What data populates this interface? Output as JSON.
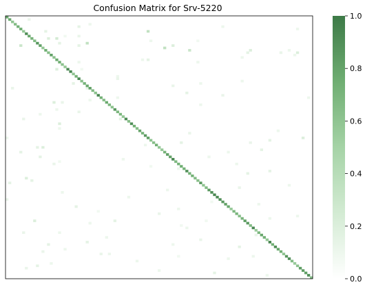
{
  "chart_data": {
    "type": "heatmap",
    "title": "Confusion Matrix for Srv-5220",
    "xlabel": "",
    "ylabel": "",
    "size": 111,
    "value_range": [
      0.0,
      1.0
    ],
    "colormap": [
      "#ffffff",
      "#3d7a47"
    ],
    "diagonal_value_range": [
      0.55,
      0.95
    ],
    "off_diagonal_max": 0.5,
    "off_diagonal_cells": [
      [
        1,
        8,
        0.12
      ],
      [
        3,
        30,
        0.1
      ],
      [
        4,
        26,
        0.15
      ],
      [
        4,
        78,
        0.1
      ],
      [
        5,
        105,
        0.1
      ],
      [
        6,
        14,
        0.15
      ],
      [
        6,
        51,
        0.35
      ],
      [
        8,
        26,
        0.12
      ],
      [
        8,
        21,
        0.08
      ],
      [
        9,
        15,
        0.2
      ],
      [
        9,
        18,
        0.25
      ],
      [
        10,
        69,
        0.08
      ],
      [
        10,
        52,
        0.1
      ],
      [
        11,
        29,
        0.35
      ],
      [
        11,
        19,
        0.15
      ],
      [
        12,
        26,
        0.15
      ],
      [
        12,
        5,
        0.3
      ],
      [
        12,
        60,
        0.2
      ],
      [
        13,
        57,
        0.35
      ],
      [
        14,
        66,
        0.3
      ],
      [
        14,
        88,
        0.2
      ],
      [
        14,
        102,
        0.1
      ],
      [
        15,
        87,
        0.15
      ],
      [
        15,
        99,
        0.12
      ],
      [
        15,
        105,
        0.2
      ],
      [
        16,
        104,
        0.1
      ],
      [
        17,
        85,
        0.1
      ],
      [
        18,
        49,
        0.1
      ],
      [
        18,
        51,
        0.15
      ],
      [
        19,
        26,
        0.1
      ],
      [
        19,
        69,
        0.1
      ],
      [
        22,
        18,
        0.2
      ],
      [
        22,
        27,
        0.08
      ],
      [
        25,
        40,
        0.1
      ],
      [
        26,
        40,
        0.12
      ],
      [
        28,
        24,
        0.15
      ],
      [
        28,
        70,
        0.1
      ],
      [
        29,
        60,
        0.12
      ],
      [
        30,
        2,
        0.12
      ],
      [
        30,
        29,
        0.15
      ],
      [
        32,
        65,
        0.15
      ],
      [
        33,
        78,
        0.12
      ],
      [
        34,
        109,
        0.1
      ],
      [
        36,
        17,
        0.2
      ],
      [
        36,
        20,
        0.12
      ],
      [
        37,
        70,
        0.1
      ],
      [
        39,
        18,
        0.1
      ],
      [
        40,
        26,
        0.12
      ],
      [
        41,
        12,
        0.1
      ],
      [
        43,
        6,
        0.12
      ],
      [
        43,
        41,
        0.15
      ],
      [
        45,
        19,
        0.2
      ],
      [
        47,
        19,
        0.1
      ],
      [
        48,
        98,
        0.1
      ],
      [
        51,
        0,
        0.1
      ],
      [
        51,
        107,
        0.2
      ],
      [
        52,
        95,
        0.15
      ],
      [
        53,
        88,
        0.12
      ],
      [
        54,
        50,
        0.1
      ],
      [
        55,
        11,
        0.15
      ],
      [
        55,
        13,
        0.2
      ],
      [
        56,
        92,
        0.15
      ],
      [
        57,
        5,
        0.15
      ],
      [
        57,
        80,
        0.1
      ],
      [
        59,
        73,
        0.1
      ],
      [
        60,
        42,
        0.1
      ],
      [
        61,
        19,
        0.08
      ],
      [
        62,
        17,
        0.12
      ],
      [
        62,
        83,
        0.1
      ],
      [
        63,
        52,
        0.08
      ],
      [
        64,
        62,
        0.1
      ],
      [
        65,
        95,
        0.15
      ],
      [
        66,
        87,
        0.15
      ],
      [
        68,
        7,
        0.2
      ],
      [
        69,
        9,
        0.15
      ],
      [
        70,
        1,
        0.15
      ],
      [
        71,
        102,
        0.1
      ],
      [
        72,
        84,
        0.12
      ],
      [
        73,
        58,
        0.1
      ],
      [
        74,
        20,
        0.1
      ],
      [
        76,
        44,
        0.1
      ],
      [
        77,
        0,
        0.12
      ],
      [
        78,
        74,
        0.08
      ],
      [
        79,
        91,
        0.1
      ],
      [
        80,
        25,
        0.15
      ],
      [
        81,
        62,
        0.1
      ],
      [
        83,
        55,
        0.12
      ],
      [
        84,
        105,
        0.1
      ],
      [
        85,
        95,
        0.1
      ],
      [
        86,
        10,
        0.2
      ],
      [
        86,
        39,
        0.15
      ],
      [
        87,
        30,
        0.1
      ],
      [
        88,
        63,
        0.08
      ],
      [
        89,
        65,
        0.1
      ],
      [
        91,
        6,
        0.12
      ],
      [
        91,
        19,
        0.1
      ],
      [
        92,
        90,
        0.12
      ],
      [
        93,
        36,
        0.1
      ],
      [
        94,
        70,
        0.12
      ],
      [
        95,
        29,
        0.15
      ],
      [
        96,
        15,
        0.15
      ],
      [
        96,
        60,
        0.1
      ],
      [
        97,
        84,
        0.15
      ],
      [
        98,
        21,
        0.1
      ],
      [
        99,
        13,
        0.12
      ],
      [
        100,
        34,
        0.12
      ],
      [
        100,
        37,
        0.1
      ],
      [
        101,
        62,
        0.08
      ],
      [
        101,
        89,
        0.1
      ],
      [
        102,
        80,
        0.1
      ],
      [
        103,
        47,
        0.1
      ],
      [
        104,
        16,
        0.1
      ],
      [
        105,
        11,
        0.15
      ],
      [
        106,
        7,
        0.12
      ],
      [
        107,
        55,
        0.1
      ],
      [
        108,
        75,
        0.15
      ],
      [
        109,
        94,
        0.1
      ],
      [
        49,
        66,
        0.12
      ],
      [
        53,
        63,
        0.15
      ],
      [
        59,
        12,
        0.15
      ],
      [
        34,
        40,
        0.1
      ],
      [
        35,
        30,
        0.1
      ],
      [
        27,
        85,
        0.1
      ],
      [
        86,
        72,
        0.08
      ],
      [
        82,
        33,
        0.08
      ]
    ],
    "colorbar_ticks": [
      "0.0",
      "0.2",
      "0.4",
      "0.6",
      "0.8",
      "1.0"
    ],
    "grid": false
  }
}
